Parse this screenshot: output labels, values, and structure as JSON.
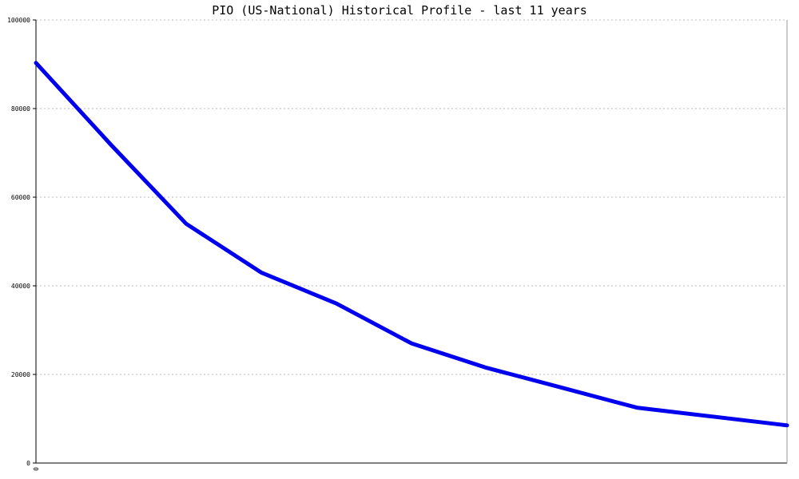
{
  "chart_data": {
    "type": "line",
    "title": "PIO (US-National) Historical Profile - last 11 years",
    "xlabel": "",
    "ylabel": "",
    "ylim": [
      0,
      100000
    ],
    "y_ticks": [
      0,
      20000,
      40000,
      60000,
      80000,
      100000
    ],
    "y_tick_labels": [
      "0",
      "20000",
      "40000",
      "60000",
      "80000",
      "100000"
    ],
    "x_tick_labels": [
      "0"
    ],
    "grid": true,
    "series": [
      {
        "color": "#0000ee",
        "values": [
          90300,
          71800,
          54000,
          43000,
          36000,
          27000,
          21500,
          17000,
          12500,
          10500,
          8500
        ]
      }
    ]
  }
}
